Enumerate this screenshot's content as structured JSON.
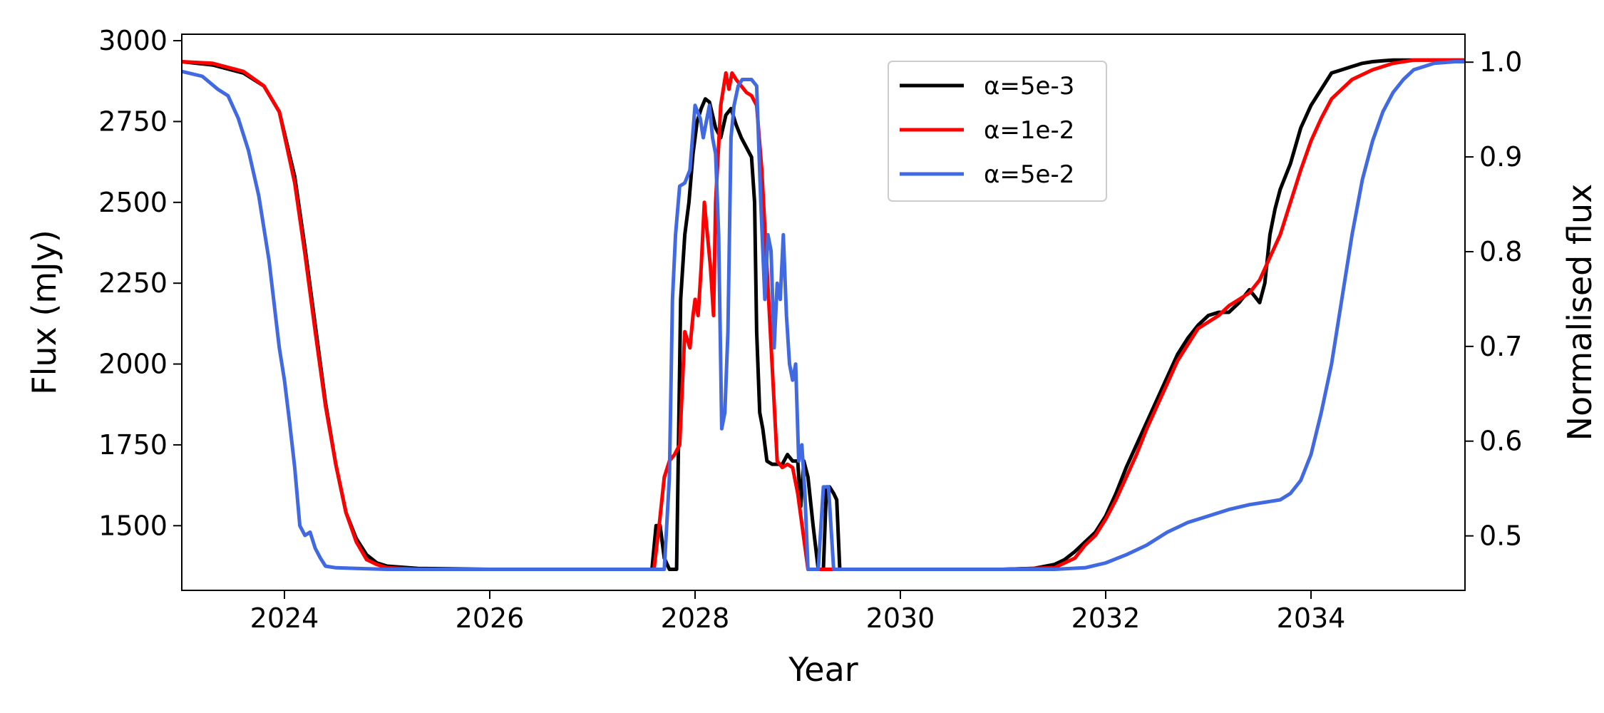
{
  "chart_data": {
    "type": "line",
    "title": "",
    "xlabel": "Year",
    "ylabel": "Flux (mJy)",
    "y2label": "Normalised flux",
    "xlim": [
      2023.0,
      2035.5
    ],
    "ylim": [
      1300,
      3020
    ],
    "y2lim": [
      0.4425,
      1.0295
    ],
    "x_ticks": [
      2024,
      2026,
      2028,
      2030,
      2032,
      2034
    ],
    "y_ticks": [
      1500,
      1750,
      2000,
      2250,
      2500,
      2750,
      3000
    ],
    "y2_ticks": [
      0.5,
      0.6,
      0.7,
      0.8,
      0.9,
      1.0
    ],
    "grid": false,
    "legend_position": "top-center",
    "series": [
      {
        "name": "α=5e-3",
        "color": "#000000",
        "x": [
          2023.0,
          2023.3,
          2023.6,
          2023.8,
          2023.95,
          2024.1,
          2024.2,
          2024.3,
          2024.4,
          2024.5,
          2024.6,
          2024.7,
          2024.8,
          2024.9,
          2025.0,
          2025.3,
          2026.0,
          2027.0,
          2027.5,
          2027.58,
          2027.62,
          2027.66,
          2027.7,
          2027.75,
          2027.78,
          2027.82,
          2027.86,
          2027.9,
          2027.94,
          2027.98,
          2028.02,
          2028.06,
          2028.1,
          2028.14,
          2028.2,
          2028.25,
          2028.3,
          2028.35,
          2028.4,
          2028.45,
          2028.5,
          2028.55,
          2028.58,
          2028.6,
          2028.63,
          2028.66,
          2028.7,
          2028.75,
          2028.8,
          2028.85,
          2028.9,
          2028.95,
          2029.0,
          2029.03,
          2029.06,
          2029.1,
          2029.15,
          2029.2,
          2029.25,
          2029.28,
          2029.31,
          2029.35,
          2029.38,
          2029.41,
          2029.44,
          2029.47,
          2029.6,
          2030.0,
          2030.5,
          2031.0,
          2031.3,
          2031.5,
          2031.6,
          2031.7,
          2031.8,
          2031.9,
          2032.0,
          2032.1,
          2032.2,
          2032.3,
          2032.4,
          2032.5,
          2032.6,
          2032.7,
          2032.8,
          2032.9,
          2033.0,
          2033.1,
          2033.2,
          2033.3,
          2033.4,
          2033.45,
          2033.5,
          2033.55,
          2033.6,
          2033.65,
          2033.7,
          2033.8,
          2033.9,
          2034.0,
          2034.1,
          2034.2,
          2034.3,
          2034.4,
          2034.5,
          2034.6,
          2034.7,
          2034.8,
          2035.0,
          2035.5
        ],
        "y": [
          2935,
          2925,
          2900,
          2860,
          2780,
          2580,
          2360,
          2120,
          1880,
          1690,
          1540,
          1460,
          1410,
          1385,
          1375,
          1368,
          1365,
          1365,
          1365,
          1365,
          1500,
          1500,
          1400,
          1365,
          1365,
          1365,
          2200,
          2400,
          2500,
          2650,
          2750,
          2790,
          2820,
          2810,
          2730,
          2700,
          2770,
          2790,
          2740,
          2700,
          2670,
          2640,
          2500,
          2100,
          1850,
          1800,
          1700,
          1690,
          1690,
          1690,
          1720,
          1700,
          1700,
          1560,
          1700,
          1650,
          1500,
          1365,
          1365,
          1620,
          1620,
          1600,
          1580,
          1365,
          1365,
          1365,
          1365,
          1365,
          1365,
          1365,
          1368,
          1380,
          1395,
          1420,
          1450,
          1480,
          1530,
          1600,
          1680,
          1750,
          1820,
          1890,
          1960,
          2030,
          2080,
          2120,
          2150,
          2160,
          2160,
          2190,
          2230,
          2210,
          2190,
          2250,
          2400,
          2480,
          2540,
          2620,
          2730,
          2800,
          2850,
          2900,
          2910,
          2920,
          2930,
          2935,
          2938,
          2940,
          2940,
          2940
        ]
      },
      {
        "name": "α=1e-2",
        "color": "#ff0000",
        "x": [
          2023.0,
          2023.3,
          2023.6,
          2023.8,
          2023.95,
          2024.1,
          2024.2,
          2024.3,
          2024.4,
          2024.5,
          2024.6,
          2024.7,
          2024.8,
          2024.9,
          2025.0,
          2025.3,
          2026.0,
          2027.0,
          2027.6,
          2027.65,
          2027.7,
          2027.75,
          2027.8,
          2027.85,
          2027.9,
          2027.95,
          2027.98,
          2028.0,
          2028.03,
          2028.06,
          2028.09,
          2028.12,
          2028.15,
          2028.18,
          2028.2,
          2028.25,
          2028.3,
          2028.33,
          2028.36,
          2028.4,
          2028.45,
          2028.5,
          2028.55,
          2028.6,
          2028.65,
          2028.7,
          2028.75,
          2028.8,
          2028.85,
          2028.9,
          2028.95,
          2029.0,
          2029.1,
          2029.2,
          2029.3,
          2029.5,
          2030.0,
          2031.0,
          2031.5,
          2031.7,
          2031.8,
          2031.9,
          2032.0,
          2032.1,
          2032.2,
          2032.3,
          2032.4,
          2032.5,
          2032.6,
          2032.7,
          2032.8,
          2032.9,
          2033.0,
          2033.1,
          2033.2,
          2033.3,
          2033.4,
          2033.5,
          2033.6,
          2033.7,
          2033.8,
          2033.9,
          2034.0,
          2034.1,
          2034.2,
          2034.4,
          2034.6,
          2034.8,
          2035.0,
          2035.5
        ],
        "y": [
          2935,
          2930,
          2905,
          2860,
          2780,
          2560,
          2340,
          2100,
          1870,
          1690,
          1540,
          1450,
          1395,
          1380,
          1370,
          1365,
          1365,
          1365,
          1365,
          1500,
          1650,
          1700,
          1720,
          1750,
          2100,
          2050,
          2150,
          2200,
          2150,
          2300,
          2500,
          2400,
          2300,
          2150,
          2500,
          2800,
          2900,
          2850,
          2900,
          2880,
          2860,
          2840,
          2830,
          2800,
          2600,
          2300,
          2000,
          1700,
          1680,
          1690,
          1680,
          1600,
          1365,
          1365,
          1365,
          1365,
          1365,
          1365,
          1370,
          1400,
          1440,
          1470,
          1520,
          1580,
          1650,
          1720,
          1800,
          1870,
          1940,
          2010,
          2060,
          2110,
          2130,
          2150,
          2180,
          2200,
          2220,
          2260,
          2330,
          2400,
          2500,
          2600,
          2690,
          2760,
          2820,
          2880,
          2910,
          2930,
          2940,
          2940
        ]
      },
      {
        "name": "α=5e-2",
        "color": "#4169e1",
        "x": [
          2023.0,
          2023.2,
          2023.35,
          2023.45,
          2023.55,
          2023.65,
          2023.75,
          2023.85,
          2023.95,
          2024.0,
          2024.05,
          2024.1,
          2024.15,
          2024.2,
          2024.25,
          2024.3,
          2024.35,
          2024.4,
          2024.5,
          2024.7,
          2025.0,
          2025.5,
          2026.0,
          2027.0,
          2027.5,
          2027.7,
          2027.75,
          2027.78,
          2027.81,
          2027.85,
          2027.9,
          2027.95,
          2028.0,
          2028.05,
          2028.08,
          2028.11,
          2028.14,
          2028.17,
          2028.2,
          2028.23,
          2028.26,
          2028.29,
          2028.32,
          2028.35,
          2028.38,
          2028.42,
          2028.46,
          2028.5,
          2028.55,
          2028.6,
          2028.64,
          2028.68,
          2028.71,
          2028.74,
          2028.77,
          2028.8,
          2028.83,
          2028.86,
          2028.89,
          2028.92,
          2028.95,
          2028.98,
          2029.01,
          2029.04,
          2029.07,
          2029.1,
          2029.15,
          2029.2,
          2029.25,
          2029.3,
          2029.35,
          2029.4,
          2029.45,
          2029.5,
          2030.0,
          2031.0,
          2031.5,
          2031.8,
          2032.0,
          2032.2,
          2032.4,
          2032.6,
          2032.8,
          2033.0,
          2033.2,
          2033.4,
          2033.6,
          2033.7,
          2033.8,
          2033.9,
          2034.0,
          2034.1,
          2034.2,
          2034.3,
          2034.4,
          2034.5,
          2034.6,
          2034.7,
          2034.8,
          2034.9,
          2035.0,
          2035.2,
          2035.4,
          2035.5
        ],
        "y": [
          2905,
          2890,
          2850,
          2830,
          2760,
          2660,
          2520,
          2320,
          2050,
          1950,
          1820,
          1680,
          1500,
          1470,
          1480,
          1430,
          1400,
          1375,
          1370,
          1368,
          1365,
          1365,
          1365,
          1365,
          1365,
          1365,
          1650,
          2200,
          2400,
          2550,
          2560,
          2600,
          2800,
          2760,
          2700,
          2750,
          2800,
          2700,
          2650,
          2400,
          1800,
          1850,
          2100,
          2700,
          2800,
          2860,
          2880,
          2880,
          2880,
          2860,
          2500,
          2200,
          2400,
          2350,
          2050,
          2250,
          2200,
          2400,
          2150,
          2000,
          1950,
          2000,
          1700,
          1750,
          1600,
          1365,
          1365,
          1365,
          1620,
          1620,
          1365,
          1365,
          1365,
          1365,
          1365,
          1365,
          1365,
          1370,
          1385,
          1410,
          1440,
          1480,
          1510,
          1530,
          1550,
          1565,
          1575,
          1580,
          1600,
          1640,
          1720,
          1850,
          2000,
          2200,
          2400,
          2570,
          2690,
          2780,
          2840,
          2880,
          2910,
          2930,
          2935,
          2935
        ]
      }
    ]
  }
}
